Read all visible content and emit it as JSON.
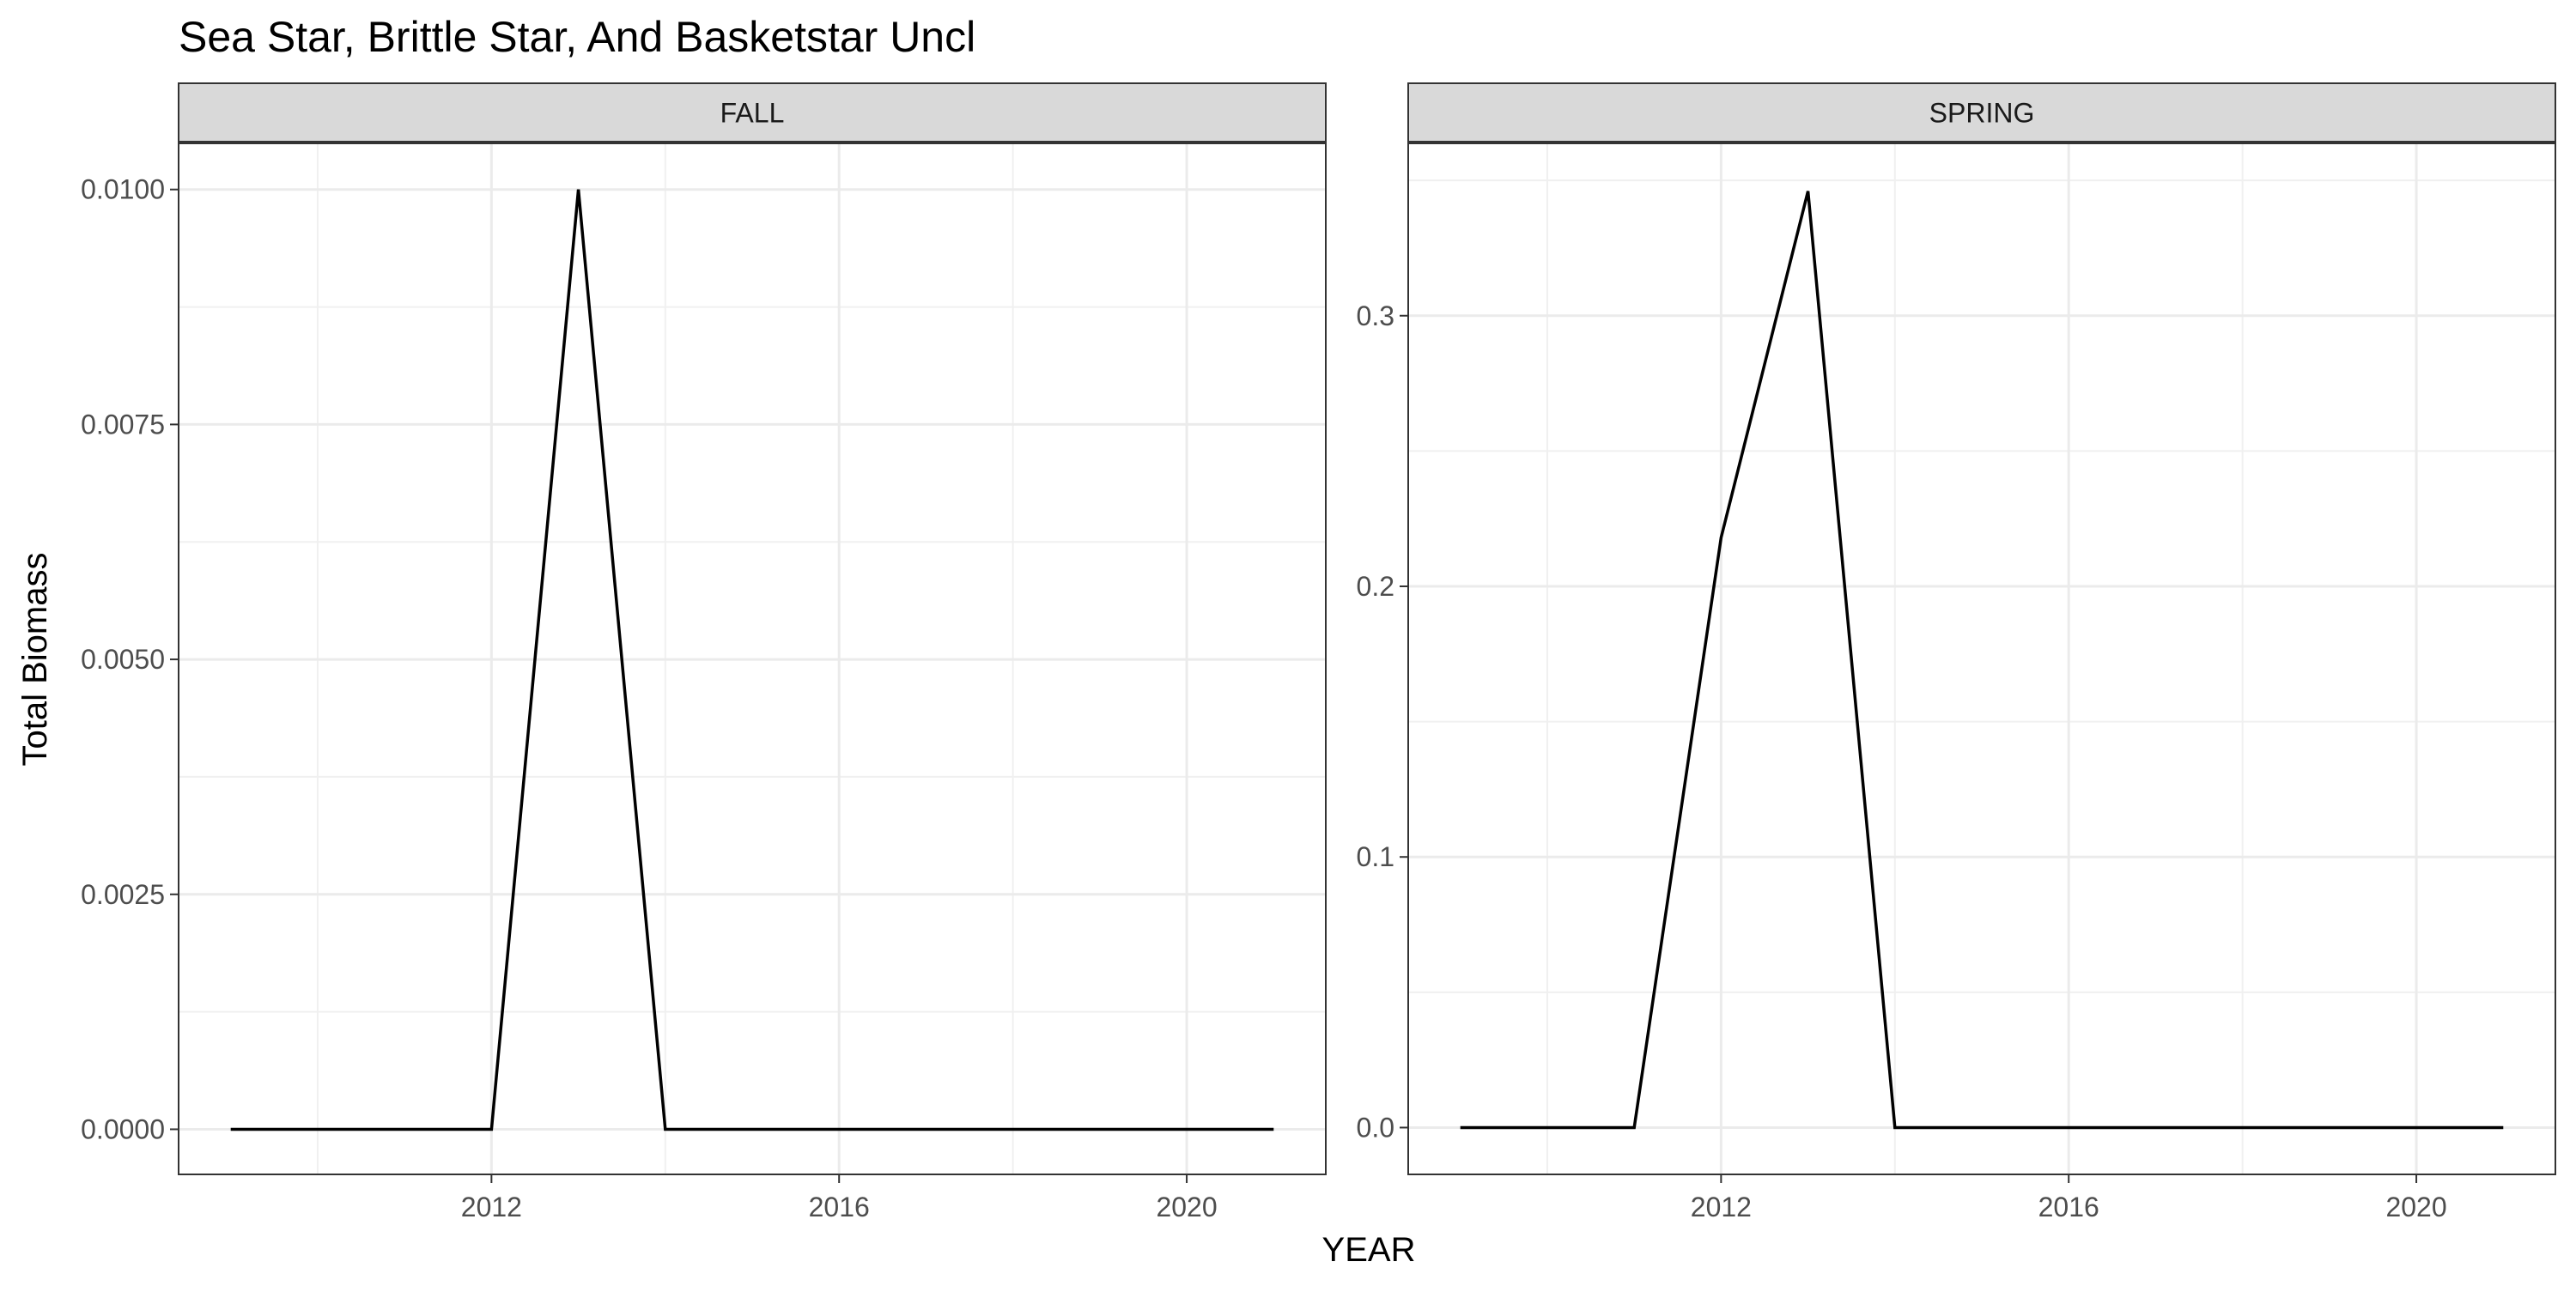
{
  "chart_data": {
    "type": "line",
    "title": "Sea Star, Brittle Star, And Basketstar Uncl",
    "xlabel": "YEAR",
    "ylabel": "Total Biomass",
    "grid": true,
    "line_color": "#000000",
    "strip_fill": "#d9d9d9",
    "facets": [
      {
        "label": "FALL",
        "x": [
          2009,
          2010,
          2011,
          2012,
          2013,
          2014,
          2015,
          2016,
          2017,
          2018,
          2019,
          2020,
          2021
        ],
        "values": [
          0,
          0,
          0,
          0,
          0.01,
          0,
          0,
          0,
          0,
          0,
          0,
          0,
          0
        ],
        "xlim": [
          2008.4,
          2021.6
        ],
        "ylim": [
          -0.00048,
          0.0105
        ],
        "xticks": [
          2012,
          2016,
          2020
        ],
        "xtick_labels": [
          "2012",
          "2016",
          "2020"
        ],
        "yticks": [
          0,
          0.0025,
          0.005,
          0.0075,
          0.01
        ],
        "ytick_labels": [
          "0.0000",
          "0.0025",
          "0.0050",
          "0.0075",
          "0.0100"
        ]
      },
      {
        "label": "SPRING",
        "x": [
          2009,
          2010,
          2011,
          2012,
          2013,
          2014,
          2015,
          2016,
          2017,
          2018,
          2019,
          2020,
          2021
        ],
        "values": [
          0,
          0,
          0,
          0.218,
          0.346,
          0,
          0,
          0,
          0,
          0,
          0,
          0,
          0
        ],
        "xlim": [
          2008.4,
          2021.6
        ],
        "ylim": [
          -0.0173,
          0.364
        ],
        "xticks": [
          2012,
          2016,
          2020
        ],
        "xtick_labels": [
          "2012",
          "2016",
          "2020"
        ],
        "yticks": [
          0,
          0.1,
          0.2,
          0.3
        ],
        "ytick_labels": [
          "0.0",
          "0.1",
          "0.2",
          "0.3"
        ]
      }
    ]
  }
}
